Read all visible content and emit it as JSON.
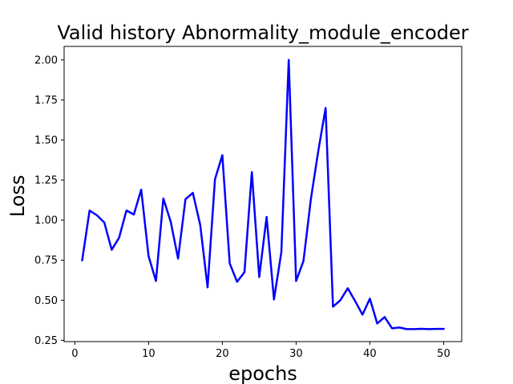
{
  "chart_data": {
    "type": "line",
    "title": "Valid history Abnormality_module_encoder",
    "xlabel": "epochs",
    "ylabel": "Loss",
    "xlim": [
      -1.45,
      52.45
    ],
    "ylim": [
      0.242,
      2.084
    ],
    "xticks": [
      0,
      10,
      20,
      30,
      40,
      50
    ],
    "xtick_labels": [
      "0",
      "10",
      "20",
      "30",
      "40",
      "50"
    ],
    "yticks": [
      0.25,
      0.5,
      0.75,
      1.0,
      1.25,
      1.5,
      1.75,
      2.0
    ],
    "ytick_labels": [
      "0.25",
      "0.50",
      "0.75",
      "1.00",
      "1.25",
      "1.50",
      "1.75",
      "2.00"
    ],
    "grid": false,
    "series": [
      {
        "color": "#0000ff",
        "x": [
          1,
          2,
          3,
          4,
          5,
          6,
          7,
          8,
          9,
          10,
          11,
          12,
          13,
          14,
          15,
          16,
          17,
          18,
          19,
          20,
          21,
          22,
          23,
          24,
          25,
          26,
          27,
          28,
          29,
          30,
          31,
          32,
          33,
          34,
          35,
          36,
          37,
          38,
          39,
          40,
          41,
          42,
          43,
          44,
          45,
          46,
          47,
          48,
          49,
          50
        ],
        "values": [
          0.75,
          1.06,
          1.03,
          0.985,
          0.815,
          0.89,
          1.06,
          1.035,
          1.19,
          0.775,
          0.62,
          1.135,
          0.99,
          0.76,
          1.13,
          1.17,
          0.97,
          0.58,
          1.255,
          1.405,
          0.73,
          0.615,
          0.675,
          1.3,
          0.645,
          1.02,
          0.505,
          0.8,
          2.0,
          0.62,
          0.745,
          1.13,
          1.43,
          1.7,
          0.46,
          0.5,
          0.575,
          0.495,
          0.41,
          0.51,
          0.355,
          0.395,
          0.325,
          0.33,
          0.32,
          0.32,
          0.322,
          0.32,
          0.321,
          0.321
        ]
      }
    ]
  }
}
